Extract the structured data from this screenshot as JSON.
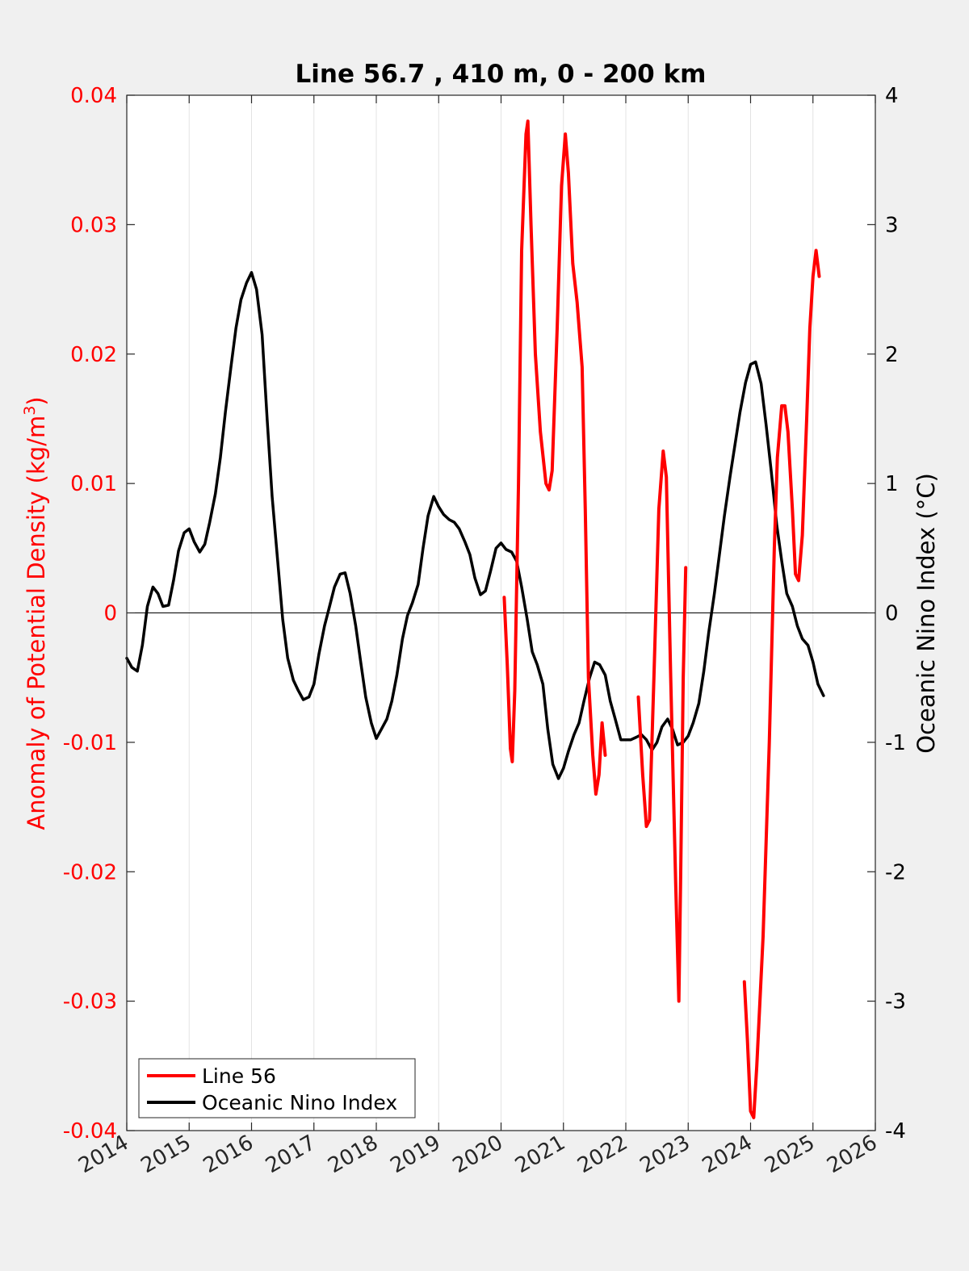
{
  "chart_data": {
    "type": "line",
    "title": "Line 56.7 , 410 m, 0 - 200 km",
    "xlabel": "",
    "ylabel_left": "Anomaly of Potential Density (kg/m",
    "ylabel_left_sup": "3",
    "ylabel_left_close": ")",
    "ylabel_right": "Oceanic Nino Index (°C)",
    "xlim": [
      2014,
      2026
    ],
    "ylim_left": [
      -0.04,
      0.04
    ],
    "ylim_right": [
      -4,
      4
    ],
    "x_ticks": [
      "2014",
      "2015",
      "2016",
      "2017",
      "2018",
      "2019",
      "2020",
      "2021",
      "2022",
      "2023",
      "2024",
      "2025",
      "2026"
    ],
    "y_left_ticks": [
      "0.04",
      "0.03",
      "0.02",
      "0.01",
      "0",
      "-0.01",
      "-0.02",
      "-0.03",
      "-0.04"
    ],
    "y_right_ticks": [
      "4",
      "3",
      "2",
      "1",
      "0",
      "-1",
      "-2",
      "-3",
      "-4"
    ],
    "grid": "vertical",
    "zero_line": true,
    "legend_position": "bottom-left",
    "colors": {
      "line56": "#ff0000",
      "oni": "#000000",
      "left_axis": "#ff0000",
      "right_axis": "#000000",
      "grid": "#e3e3e3",
      "plot_bg": "#ffffff",
      "figure_bg": "#f0f0f0"
    },
    "series": [
      {
        "name": "Line 56",
        "axis": "left",
        "segments": [
          [
            [
              2020.05,
              0.0012
            ],
            [
              2020.1,
              -0.004
            ],
            [
              2020.15,
              -0.0105
            ],
            [
              2020.18,
              -0.0115
            ],
            [
              2020.22,
              -0.006
            ],
            [
              2020.28,
              0.01
            ],
            [
              2020.33,
              0.028
            ],
            [
              2020.4,
              0.037
            ],
            [
              2020.43,
              0.038
            ],
            [
              2020.48,
              0.03
            ],
            [
              2020.55,
              0.02
            ],
            [
              2020.63,
              0.014
            ],
            [
              2020.72,
              0.01
            ],
            [
              2020.77,
              0.0095
            ],
            [
              2020.82,
              0.011
            ],
            [
              2020.9,
              0.022
            ],
            [
              2020.97,
              0.033
            ],
            [
              2021.03,
              0.037
            ],
            [
              2021.08,
              0.034
            ],
            [
              2021.15,
              0.027
            ],
            [
              2021.22,
              0.024
            ],
            [
              2021.3,
              0.019
            ],
            [
              2021.35,
              0.008
            ],
            [
              2021.4,
              -0.005
            ],
            [
              2021.47,
              -0.011
            ],
            [
              2021.52,
              -0.014
            ],
            [
              2021.57,
              -0.0125
            ],
            [
              2021.62,
              -0.0085
            ],
            [
              2021.67,
              -0.011
            ]
          ],
          [
            [
              2022.2,
              -0.0065
            ],
            [
              2022.27,
              -0.0125
            ],
            [
              2022.33,
              -0.0165
            ],
            [
              2022.38,
              -0.016
            ],
            [
              2022.45,
              -0.005
            ],
            [
              2022.53,
              0.008
            ],
            [
              2022.6,
              0.0125
            ],
            [
              2022.65,
              0.0105
            ],
            [
              2022.72,
              -0.005
            ],
            [
              2022.8,
              -0.021
            ],
            [
              2022.85,
              -0.03
            ],
            [
              2022.88,
              -0.02
            ],
            [
              2022.92,
              -0.005
            ],
            [
              2022.96,
              0.0035
            ]
          ],
          [
            [
              2023.9,
              -0.0285
            ],
            [
              2023.95,
              -0.033
            ],
            [
              2024.0,
              -0.0385
            ],
            [
              2024.05,
              -0.039
            ],
            [
              2024.1,
              -0.035
            ],
            [
              2024.2,
              -0.025
            ],
            [
              2024.3,
              -0.01
            ],
            [
              2024.38,
              0.005
            ],
            [
              2024.43,
              0.012
            ],
            [
              2024.5,
              0.016
            ],
            [
              2024.55,
              0.016
            ],
            [
              2024.6,
              0.014
            ],
            [
              2024.67,
              0.008
            ],
            [
              2024.72,
              0.003
            ],
            [
              2024.77,
              0.0025
            ],
            [
              2024.83,
              0.006
            ],
            [
              2024.9,
              0.015
            ],
            [
              2024.95,
              0.022
            ],
            [
              2025.0,
              0.026
            ],
            [
              2025.05,
              0.028
            ],
            [
              2025.1,
              0.026
            ]
          ]
        ]
      },
      {
        "name": "Oceanic Nino Index",
        "axis": "right",
        "points": [
          [
            2014.0,
            -0.35
          ],
          [
            2014.08,
            -0.42
          ],
          [
            2014.17,
            -0.45
          ],
          [
            2014.25,
            -0.25
          ],
          [
            2014.33,
            0.05
          ],
          [
            2014.42,
            0.2
          ],
          [
            2014.5,
            0.15
          ],
          [
            2014.58,
            0.05
          ],
          [
            2014.67,
            0.06
          ],
          [
            2014.75,
            0.25
          ],
          [
            2014.83,
            0.48
          ],
          [
            2014.92,
            0.62
          ],
          [
            2015.0,
            0.65
          ],
          [
            2015.08,
            0.55
          ],
          [
            2015.17,
            0.47
          ],
          [
            2015.25,
            0.53
          ],
          [
            2015.33,
            0.7
          ],
          [
            2015.42,
            0.92
          ],
          [
            2015.5,
            1.2
          ],
          [
            2015.58,
            1.55
          ],
          [
            2015.67,
            1.9
          ],
          [
            2015.75,
            2.2
          ],
          [
            2015.83,
            2.42
          ],
          [
            2015.92,
            2.55
          ],
          [
            2016.0,
            2.63
          ],
          [
            2016.08,
            2.5
          ],
          [
            2016.17,
            2.15
          ],
          [
            2016.25,
            1.5
          ],
          [
            2016.33,
            0.9
          ],
          [
            2016.42,
            0.4
          ],
          [
            2016.5,
            -0.05
          ],
          [
            2016.58,
            -0.35
          ],
          [
            2016.67,
            -0.52
          ],
          [
            2016.75,
            -0.6
          ],
          [
            2016.83,
            -0.67
          ],
          [
            2016.92,
            -0.65
          ],
          [
            2017.0,
            -0.55
          ],
          [
            2017.08,
            -0.32
          ],
          [
            2017.17,
            -0.1
          ],
          [
            2017.25,
            0.05
          ],
          [
            2017.33,
            0.2
          ],
          [
            2017.42,
            0.3
          ],
          [
            2017.5,
            0.31
          ],
          [
            2017.58,
            0.15
          ],
          [
            2017.67,
            -0.1
          ],
          [
            2017.75,
            -0.38
          ],
          [
            2017.83,
            -0.65
          ],
          [
            2017.92,
            -0.85
          ],
          [
            2018.0,
            -0.97
          ],
          [
            2018.08,
            -0.9
          ],
          [
            2018.17,
            -0.82
          ],
          [
            2018.25,
            -0.68
          ],
          [
            2018.33,
            -0.48
          ],
          [
            2018.42,
            -0.2
          ],
          [
            2018.5,
            -0.02
          ],
          [
            2018.58,
            0.08
          ],
          [
            2018.67,
            0.22
          ],
          [
            2018.75,
            0.5
          ],
          [
            2018.83,
            0.75
          ],
          [
            2018.92,
            0.9
          ],
          [
            2019.0,
            0.82
          ],
          [
            2019.08,
            0.76
          ],
          [
            2019.17,
            0.72
          ],
          [
            2019.25,
            0.7
          ],
          [
            2019.33,
            0.65
          ],
          [
            2019.42,
            0.55
          ],
          [
            2019.5,
            0.45
          ],
          [
            2019.58,
            0.27
          ],
          [
            2019.67,
            0.14
          ],
          [
            2019.75,
            0.17
          ],
          [
            2019.83,
            0.32
          ],
          [
            2019.92,
            0.5
          ],
          [
            2020.0,
            0.54
          ],
          [
            2020.08,
            0.49
          ],
          [
            2020.17,
            0.47
          ],
          [
            2020.25,
            0.4
          ],
          [
            2020.33,
            0.2
          ],
          [
            2020.42,
            -0.05
          ],
          [
            2020.5,
            -0.3
          ],
          [
            2020.58,
            -0.4
          ],
          [
            2020.67,
            -0.55
          ],
          [
            2020.75,
            -0.9
          ],
          [
            2020.83,
            -1.17
          ],
          [
            2020.92,
            -1.28
          ],
          [
            2021.0,
            -1.2
          ],
          [
            2021.08,
            -1.07
          ],
          [
            2021.17,
            -0.94
          ],
          [
            2021.25,
            -0.85
          ],
          [
            2021.33,
            -0.68
          ],
          [
            2021.42,
            -0.5
          ],
          [
            2021.5,
            -0.38
          ],
          [
            2021.58,
            -0.4
          ],
          [
            2021.67,
            -0.48
          ],
          [
            2021.75,
            -0.68
          ],
          [
            2021.83,
            -0.82
          ],
          [
            2021.92,
            -0.98
          ],
          [
            2022.0,
            -0.98
          ],
          [
            2022.08,
            -0.98
          ],
          [
            2022.17,
            -0.96
          ],
          [
            2022.25,
            -0.94
          ],
          [
            2022.33,
            -0.98
          ],
          [
            2022.42,
            -1.06
          ],
          [
            2022.5,
            -1.0
          ],
          [
            2022.58,
            -0.88
          ],
          [
            2022.67,
            -0.82
          ],
          [
            2022.75,
            -0.9
          ],
          [
            2022.83,
            -1.02
          ],
          [
            2022.92,
            -1.0
          ],
          [
            2023.0,
            -0.95
          ],
          [
            2023.08,
            -0.85
          ],
          [
            2023.17,
            -0.7
          ],
          [
            2023.25,
            -0.45
          ],
          [
            2023.33,
            -0.15
          ],
          [
            2023.42,
            0.15
          ],
          [
            2023.5,
            0.45
          ],
          [
            2023.58,
            0.75
          ],
          [
            2023.67,
            1.05
          ],
          [
            2023.75,
            1.3
          ],
          [
            2023.83,
            1.55
          ],
          [
            2023.92,
            1.78
          ],
          [
            2024.0,
            1.92
          ],
          [
            2024.08,
            1.94
          ],
          [
            2024.17,
            1.77
          ],
          [
            2024.25,
            1.45
          ],
          [
            2024.33,
            1.1
          ],
          [
            2024.42,
            0.68
          ],
          [
            2024.5,
            0.4
          ],
          [
            2024.58,
            0.15
          ],
          [
            2024.67,
            0.05
          ],
          [
            2024.75,
            -0.1
          ],
          [
            2024.83,
            -0.2
          ],
          [
            2024.92,
            -0.25
          ],
          [
            2025.0,
            -0.38
          ],
          [
            2025.08,
            -0.55
          ],
          [
            2025.17,
            -0.64
          ]
        ]
      }
    ]
  }
}
